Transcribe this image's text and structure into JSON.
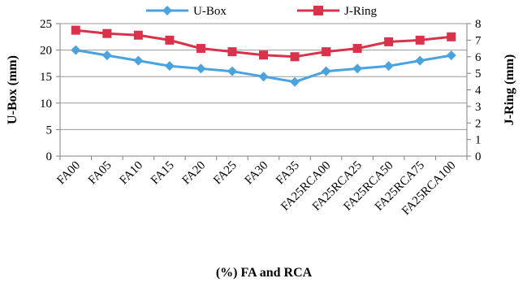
{
  "chart_data": {
    "type": "line",
    "categories": [
      "FA00",
      "FA05",
      "FA10",
      "FA15",
      "FA20",
      "FA25",
      "FA30",
      "FA35",
      "FA25RCA00",
      "FA25RCA25",
      "FA25RCA50",
      "FA25RCA75",
      "FA25RCA100"
    ],
    "series": [
      {
        "name": "U-Box",
        "axis": "left",
        "color": "#4aa3df",
        "marker": "diamond",
        "values": [
          20,
          19,
          18,
          17,
          16.5,
          16,
          15,
          14,
          16,
          16.5,
          17,
          18,
          19
        ]
      },
      {
        "name": "J-Ring",
        "axis": "right",
        "color": "#d8334a",
        "marker": "square",
        "values": [
          7.6,
          7.4,
          7.3,
          7.0,
          6.5,
          6.3,
          6.1,
          6.0,
          6.3,
          6.5,
          6.9,
          7.0,
          7.2
        ]
      }
    ],
    "xlabel": "(%) FA and RCA",
    "ylabel": "U-Box (mm)",
    "y2label": "J-Ring (mm)",
    "ylim": [
      0,
      25
    ],
    "y2lim": [
      0,
      8
    ],
    "yticks": [
      "0",
      "5",
      "10",
      "15",
      "20",
      "25"
    ],
    "y2ticks": [
      "0",
      "1",
      "2",
      "3",
      "4",
      "5",
      "6",
      "7",
      "8"
    ],
    "grid": true,
    "legend": "top-center"
  }
}
